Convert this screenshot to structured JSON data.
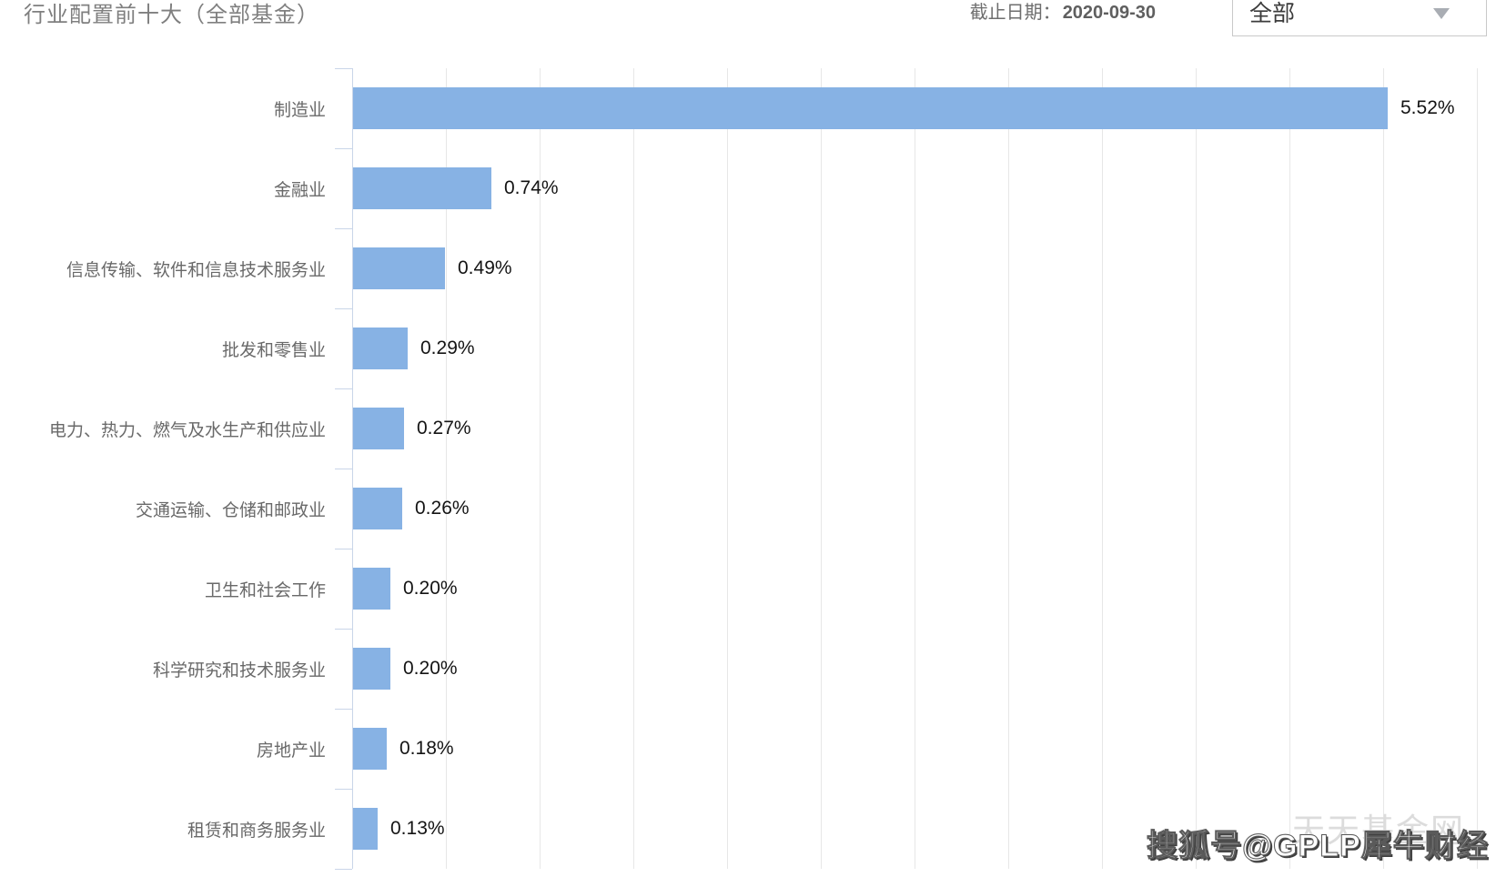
{
  "header": {
    "title": "行业配置前十大（全部基金）",
    "as_of_label": "截止日期：",
    "as_of_date": "2020-09-30",
    "filter_dropdown": {
      "selected": "全部"
    }
  },
  "chart_data": {
    "type": "bar",
    "orientation": "horizontal",
    "title": "行业配置前十大（全部基金）",
    "xlabel": "",
    "ylabel": "",
    "categories": [
      "制造业",
      "金融业",
      "信息传输、软件和信息技术服务业",
      "批发和零售业",
      "电力、热力、燃气及水生产和供应业",
      "交通运输、仓储和邮政业",
      "卫生和社会工作",
      "科学研究和技术服务业",
      "房地产业",
      "租赁和商务服务业"
    ],
    "values": [
      5.52,
      0.74,
      0.49,
      0.29,
      0.27,
      0.26,
      0.2,
      0.2,
      0.18,
      0.13
    ],
    "data_labels": [
      "5.52%",
      "0.74%",
      "0.49%",
      "0.29%",
      "0.27%",
      "0.26%",
      "0.20%",
      "0.20%",
      "0.18%",
      "0.13%"
    ],
    "xlim": [
      0,
      6
    ],
    "grid_step": 0.5,
    "grid": true,
    "legend": "none"
  },
  "watermarks": {
    "site": "天天基金网",
    "byline": "搜狐号@GPLP犀牛财经"
  },
  "colors": {
    "bar": "#87b2e4",
    "axis_line": "#c9d5e8",
    "grid_line": "#e7e7e7",
    "category_label": "#696969",
    "value_label": "#141414",
    "title": "#7f7f7f"
  }
}
